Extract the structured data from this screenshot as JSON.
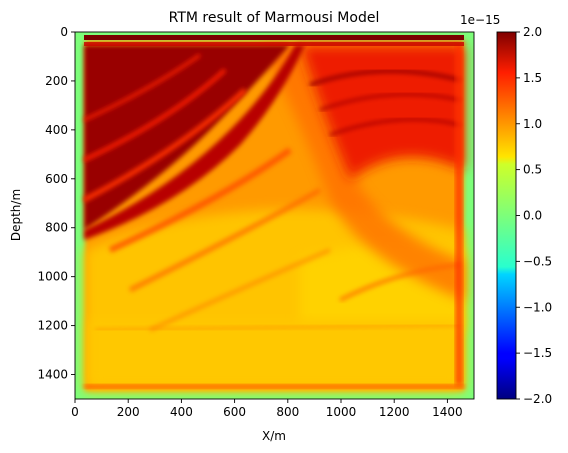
{
  "chart_data": {
    "type": "heatmap",
    "title": "RTM result of Marmousi Model",
    "xlabel": "X/m",
    "ylabel": "Depth/m",
    "xlim": [
      0,
      1500
    ],
    "ylim": [
      1500,
      0
    ],
    "x_ticks": [
      "0",
      "200",
      "400",
      "600",
      "800",
      "1000",
      "1200",
      "1400"
    ],
    "x_tick_values": [
      0,
      200,
      400,
      600,
      800,
      1000,
      1200,
      1400
    ],
    "y_ticks": [
      "0",
      "200",
      "400",
      "600",
      "800",
      "1000",
      "1200",
      "1400"
    ],
    "y_tick_values": [
      0,
      200,
      400,
      600,
      800,
      1000,
      1200,
      1400
    ],
    "colormap": "jet",
    "colorbar": {
      "range": [
        -2.0,
        2.0
      ],
      "ticks": [
        "2.0",
        "1.5",
        "1.0",
        "0.5",
        "0.0",
        "−0.5",
        "−1.0",
        "−1.5",
        "−2.0"
      ],
      "tick_values": [
        2.0,
        1.5,
        1.0,
        0.5,
        0.0,
        -0.5,
        -1.0,
        -1.5,
        -2.0
      ],
      "offset_text": "1e−15"
    },
    "grid": false
  }
}
